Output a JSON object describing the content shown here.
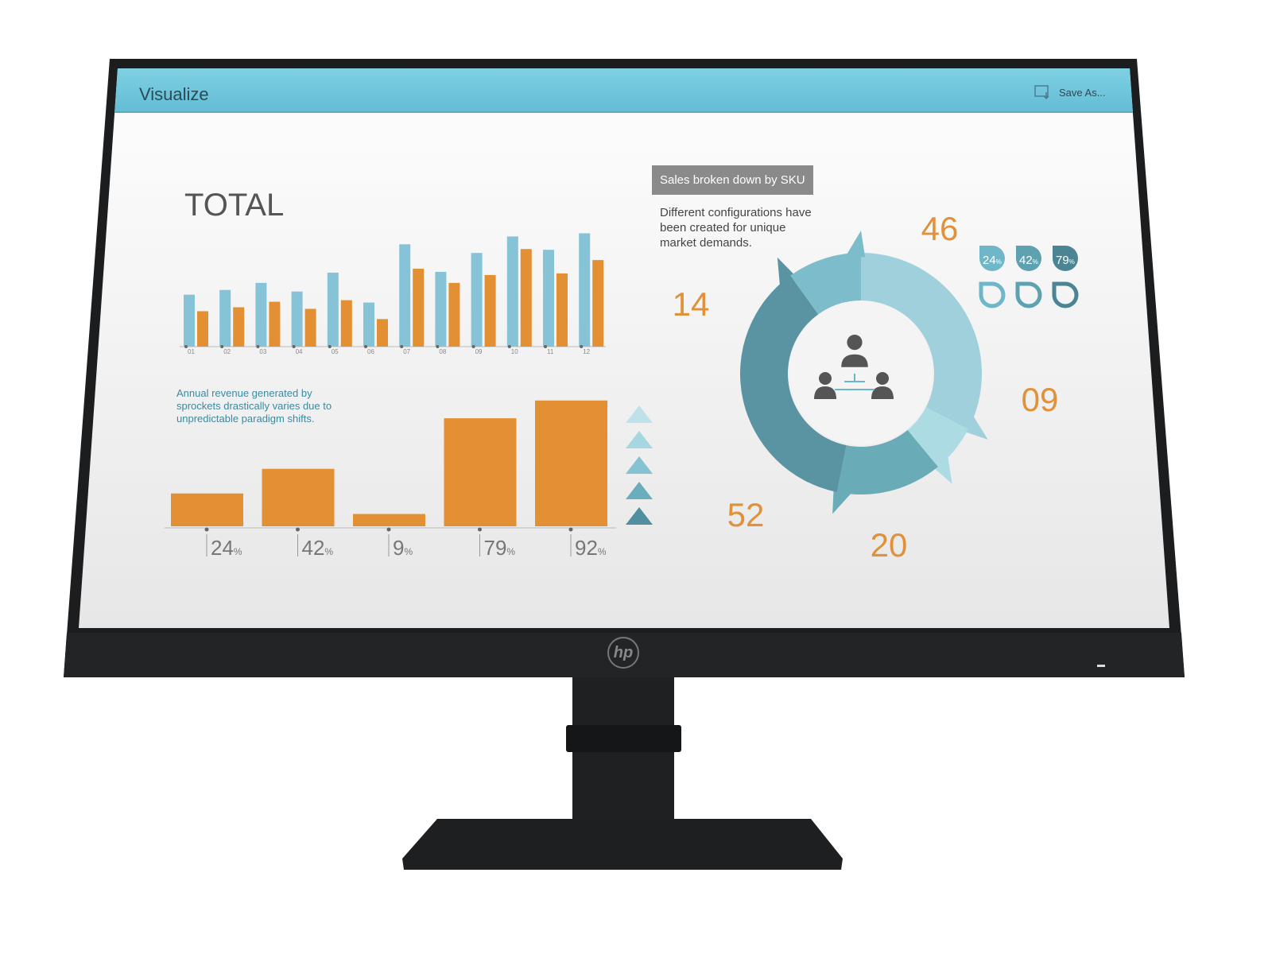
{
  "app": {
    "title": "Visualize",
    "save_label": "Save As...",
    "save_icon": "save-as-icon"
  },
  "total": {
    "heading": "TOTAL"
  },
  "chart_data": [
    {
      "type": "bar",
      "title": "TOTAL",
      "categories": [
        "01",
        "02",
        "03",
        "04",
        "05",
        "06",
        "07",
        "08",
        "09",
        "10",
        "11",
        "12"
      ],
      "series": [
        {
          "values": [
            66,
            72,
            81,
            70,
            94,
            56,
            130,
            95,
            119,
            140,
            123,
            144
          ],
          "color": "#86c3d6"
        },
        {
          "values": [
            45,
            50,
            57,
            48,
            59,
            35,
            99,
            81,
            91,
            124,
            93,
            110
          ],
          "color": "#e38f33"
        }
      ]
    },
    {
      "type": "bar",
      "categories": [
        "24%",
        "42%",
        "9%",
        "79%",
        "92%"
      ],
      "values": [
        24,
        42,
        9,
        79,
        92
      ],
      "color": "#e38f33",
      "annotation": "Annual revenue generated by sprockets drastically varies due to unpredictable paradigm shifts."
    },
    {
      "type": "pie",
      "title": "Sales broken down by SKU",
      "values": [
        46,
        9,
        20,
        52,
        14
      ],
      "labels": [
        "46",
        "09",
        "20",
        "52",
        "14"
      ],
      "colors": [
        "#9fd0dc",
        "#acdbe3",
        "#6aabb8",
        "#5a93a1",
        "#7cbccb"
      ],
      "center_icon": "people-hierarchy-icon"
    }
  ],
  "sku": {
    "label": "Sales broken down by SKU",
    "desc": [
      "Different configurations have",
      "been created for unique",
      "market demands."
    ],
    "drops": [
      {
        "value": "24",
        "unit": "%",
        "color": "#6fb6c8"
      },
      {
        "value": "42",
        "unit": "%",
        "color": "#5ea2b2"
      },
      {
        "value": "79",
        "unit": "%",
        "color": "#4b8593"
      }
    ]
  },
  "revenue": {
    "lines": [
      "Annual revenue generated by",
      "sprockets drastically varies due to",
      "unpredictable paradigm shifts."
    ]
  },
  "monitor": {
    "brand": "hp"
  }
}
